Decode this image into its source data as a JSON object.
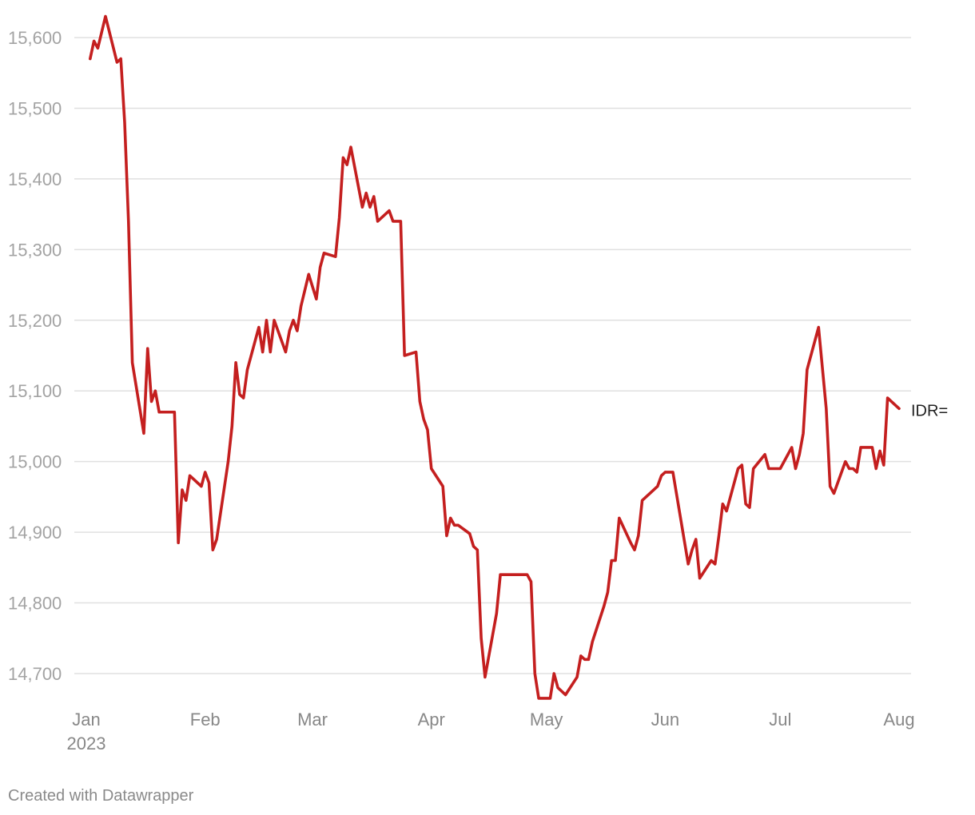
{
  "chart_data": {
    "type": "line",
    "title": "",
    "xlabel": "",
    "ylabel": "",
    "ylim": [
      14660,
      15630
    ],
    "y_ticks": [
      14700,
      14800,
      14900,
      15000,
      15100,
      15200,
      15300,
      15400,
      15500,
      15600
    ],
    "y_tick_labels": [
      "14,700",
      "14,800",
      "14,900",
      "15,000",
      "15,100",
      "15,200",
      "15,300",
      "15,400",
      "15,500",
      "15,600"
    ],
    "x_range": [
      "2023-01-01",
      "2023-08-01"
    ],
    "x_ticks": [
      {
        "date": "2023-01-01",
        "label": "Jan",
        "sublabel": "2023"
      },
      {
        "date": "2023-02-01",
        "label": "Feb",
        "sublabel": ""
      },
      {
        "date": "2023-03-01",
        "label": "Mar",
        "sublabel": ""
      },
      {
        "date": "2023-04-01",
        "label": "Apr",
        "sublabel": ""
      },
      {
        "date": "2023-05-01",
        "label": "May",
        "sublabel": ""
      },
      {
        "date": "2023-06-01",
        "label": "Jun",
        "sublabel": ""
      },
      {
        "date": "2023-07-01",
        "label": "Jul",
        "sublabel": ""
      },
      {
        "date": "2023-08-01",
        "label": "Aug",
        "sublabel": ""
      }
    ],
    "grid": true,
    "series": [
      {
        "name": "IDR=",
        "color": "#c41f1f",
        "points": [
          [
            "2023-01-02",
            15570
          ],
          [
            "2023-01-03",
            15595
          ],
          [
            "2023-01-04",
            15585
          ],
          [
            "2023-01-06",
            15630
          ],
          [
            "2023-01-09",
            15565
          ],
          [
            "2023-01-10",
            15570
          ],
          [
            "2023-01-11",
            15480
          ],
          [
            "2023-01-12",
            15340
          ],
          [
            "2023-01-13",
            15140
          ],
          [
            "2023-01-16",
            15040
          ],
          [
            "2023-01-17",
            15160
          ],
          [
            "2023-01-18",
            15085
          ],
          [
            "2023-01-19",
            15100
          ],
          [
            "2023-01-20",
            15070
          ],
          [
            "2023-01-23",
            15070
          ],
          [
            "2023-01-24",
            15070
          ],
          [
            "2023-01-25",
            14885
          ],
          [
            "2023-01-26",
            14960
          ],
          [
            "2023-01-27",
            14945
          ],
          [
            "2023-01-28",
            14980
          ],
          [
            "2023-01-31",
            14965
          ],
          [
            "2023-02-01",
            14985
          ],
          [
            "2023-02-02",
            14970
          ],
          [
            "2023-02-03",
            14875
          ],
          [
            "2023-02-04",
            14890
          ],
          [
            "2023-02-07",
            15000
          ],
          [
            "2023-02-08",
            15050
          ],
          [
            "2023-02-09",
            15140
          ],
          [
            "2023-02-10",
            15095
          ],
          [
            "2023-02-11",
            15090
          ],
          [
            "2023-02-12",
            15130
          ],
          [
            "2023-02-15",
            15190
          ],
          [
            "2023-02-16",
            15155
          ],
          [
            "2023-02-17",
            15200
          ],
          [
            "2023-02-18",
            15155
          ],
          [
            "2023-02-19",
            15200
          ],
          [
            "2023-02-22",
            15155
          ],
          [
            "2023-02-23",
            15185
          ],
          [
            "2023-02-24",
            15200
          ],
          [
            "2023-02-25",
            15185
          ],
          [
            "2023-02-26",
            15220
          ],
          [
            "2023-02-28",
            15265
          ],
          [
            "2023-03-02",
            15230
          ],
          [
            "2023-03-03",
            15275
          ],
          [
            "2023-03-04",
            15295
          ],
          [
            "2023-03-07",
            15290
          ],
          [
            "2023-03-08",
            15345
          ],
          [
            "2023-03-09",
            15430
          ],
          [
            "2023-03-10",
            15420
          ],
          [
            "2023-03-11",
            15445
          ],
          [
            "2023-03-14",
            15360
          ],
          [
            "2023-03-15",
            15380
          ],
          [
            "2023-03-16",
            15360
          ],
          [
            "2023-03-17",
            15375
          ],
          [
            "2023-03-18",
            15340
          ],
          [
            "2023-03-21",
            15355
          ],
          [
            "2023-03-22",
            15340
          ],
          [
            "2023-03-24",
            15340
          ],
          [
            "2023-03-25",
            15150
          ],
          [
            "2023-03-28",
            15155
          ],
          [
            "2023-03-29",
            15085
          ],
          [
            "2023-03-30",
            15060
          ],
          [
            "2023-03-31",
            15045
          ],
          [
            "2023-04-01",
            14990
          ],
          [
            "2023-04-04",
            14965
          ],
          [
            "2023-04-05",
            14895
          ],
          [
            "2023-04-06",
            14920
          ],
          [
            "2023-04-07",
            14910
          ],
          [
            "2023-04-08",
            14910
          ],
          [
            "2023-04-11",
            14898
          ],
          [
            "2023-04-12",
            14880
          ],
          [
            "2023-04-13",
            14875
          ],
          [
            "2023-04-14",
            14750
          ],
          [
            "2023-04-15",
            14695
          ],
          [
            "2023-04-18",
            14785
          ],
          [
            "2023-04-19",
            14840
          ],
          [
            "2023-04-26",
            14840
          ],
          [
            "2023-04-27",
            14830
          ],
          [
            "2023-04-28",
            14700
          ],
          [
            "2023-04-29",
            14665
          ],
          [
            "2023-05-02",
            14665
          ],
          [
            "2023-05-03",
            14700
          ],
          [
            "2023-05-04",
            14680
          ],
          [
            "2023-05-06",
            14670
          ],
          [
            "2023-05-09",
            14695
          ],
          [
            "2023-05-10",
            14725
          ],
          [
            "2023-05-11",
            14720
          ],
          [
            "2023-05-12",
            14720
          ],
          [
            "2023-05-13",
            14745
          ],
          [
            "2023-05-16",
            14795
          ],
          [
            "2023-05-17",
            14815
          ],
          [
            "2023-05-18",
            14860
          ],
          [
            "2023-05-19",
            14860
          ],
          [
            "2023-05-20",
            14920
          ],
          [
            "2023-05-23",
            14885
          ],
          [
            "2023-05-24",
            14875
          ],
          [
            "2023-05-25",
            14895
          ],
          [
            "2023-05-26",
            14945
          ],
          [
            "2023-05-29",
            14960
          ],
          [
            "2023-05-30",
            14965
          ],
          [
            "2023-05-31",
            14980
          ],
          [
            "2023-06-01",
            14985
          ],
          [
            "2023-06-03",
            14985
          ],
          [
            "2023-06-07",
            14855
          ],
          [
            "2023-06-08",
            14875
          ],
          [
            "2023-06-09",
            14890
          ],
          [
            "2023-06-10",
            14835
          ],
          [
            "2023-06-13",
            14860
          ],
          [
            "2023-06-14",
            14855
          ],
          [
            "2023-06-15",
            14895
          ],
          [
            "2023-06-16",
            14940
          ],
          [
            "2023-06-17",
            14930
          ],
          [
            "2023-06-20",
            14990
          ],
          [
            "2023-06-21",
            14995
          ],
          [
            "2023-06-22",
            14940
          ],
          [
            "2023-06-23",
            14935
          ],
          [
            "2023-06-24",
            14990
          ],
          [
            "2023-06-27",
            15010
          ],
          [
            "2023-06-28",
            14990
          ],
          [
            "2023-07-01",
            14990
          ],
          [
            "2023-07-04",
            15020
          ],
          [
            "2023-07-05",
            14990
          ],
          [
            "2023-07-06",
            15010
          ],
          [
            "2023-07-07",
            15040
          ],
          [
            "2023-07-08",
            15130
          ],
          [
            "2023-07-11",
            15190
          ],
          [
            "2023-07-13",
            15075
          ],
          [
            "2023-07-14",
            14965
          ],
          [
            "2023-07-15",
            14955
          ],
          [
            "2023-07-18",
            15000
          ],
          [
            "2023-07-19",
            14990
          ],
          [
            "2023-07-20",
            14990
          ],
          [
            "2023-07-21",
            14985
          ],
          [
            "2023-07-22",
            15020
          ],
          [
            "2023-07-25",
            15020
          ],
          [
            "2023-07-26",
            14990
          ],
          [
            "2023-07-27",
            15015
          ],
          [
            "2023-07-28",
            14995
          ],
          [
            "2023-07-29",
            15090
          ],
          [
            "2023-08-01",
            15075
          ]
        ]
      }
    ]
  },
  "footer": {
    "credit": "Created with Datawrapper"
  }
}
